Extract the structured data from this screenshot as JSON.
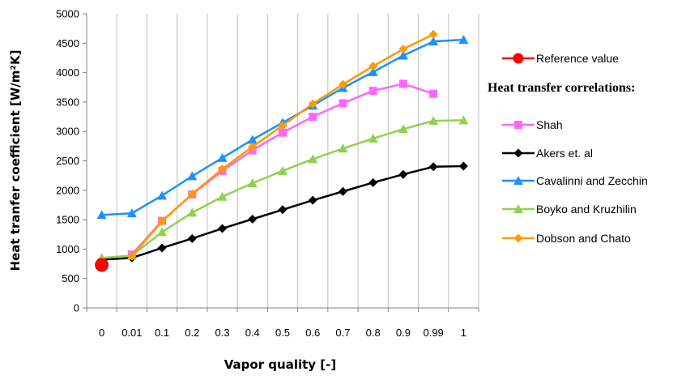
{
  "chart_data": {
    "type": "line",
    "xlabel": "Vapor quality [-]",
    "ylabel": "Heat tranfer coefficient [W/m²K]",
    "categories": [
      "0",
      "0.01",
      "0.1",
      "0.2",
      "0.3",
      "0.4",
      "0.5",
      "0.6",
      "0.7",
      "0.8",
      "0.9",
      "0.99",
      "1"
    ],
    "ylim": [
      0,
      5000
    ],
    "yticks": [
      0,
      500,
      1000,
      1500,
      2000,
      2500,
      3000,
      3500,
      4000,
      4500,
      5000
    ],
    "grid": "vertical",
    "legend_position": "right",
    "legend_heading": "Heat transfer correlations:",
    "reference": {
      "name": "Reference value",
      "category": "0",
      "value": 730,
      "color": "#ff0000",
      "marker": "circle"
    },
    "series": [
      {
        "name": "Shah",
        "color": "#ff66ff",
        "marker": "square",
        "values": [
          null,
          910,
          1480,
          1930,
          2330,
          2680,
          2980,
          3250,
          3480,
          3690,
          3810,
          3640,
          null
        ]
      },
      {
        "name": "Akers et. al",
        "color": "#000000",
        "marker": "diamond",
        "values": [
          820,
          850,
          1020,
          1180,
          1350,
          1510,
          1670,
          1830,
          1980,
          2130,
          2270,
          2400,
          2410
        ]
      },
      {
        "name": "Cavalinni and Zecchin",
        "color": "#1e90ff",
        "marker": "triangle",
        "values": [
          1580,
          1610,
          1910,
          2240,
          2550,
          2860,
          3150,
          3440,
          3740,
          4010,
          4290,
          4530,
          4560
        ]
      },
      {
        "name": "Boyko and Kruzhilin",
        "color": "#92d050",
        "marker": "triangle",
        "values": [
          850,
          890,
          1290,
          1620,
          1890,
          2120,
          2330,
          2530,
          2710,
          2880,
          3040,
          3180,
          3190
        ]
      },
      {
        "name": "Dobson and Chato",
        "color": "#ff9900",
        "marker": "diamond",
        "values": [
          null,
          880,
          1470,
          1940,
          2360,
          2740,
          3100,
          3470,
          3800,
          4110,
          4400,
          4650,
          null
        ]
      }
    ]
  }
}
